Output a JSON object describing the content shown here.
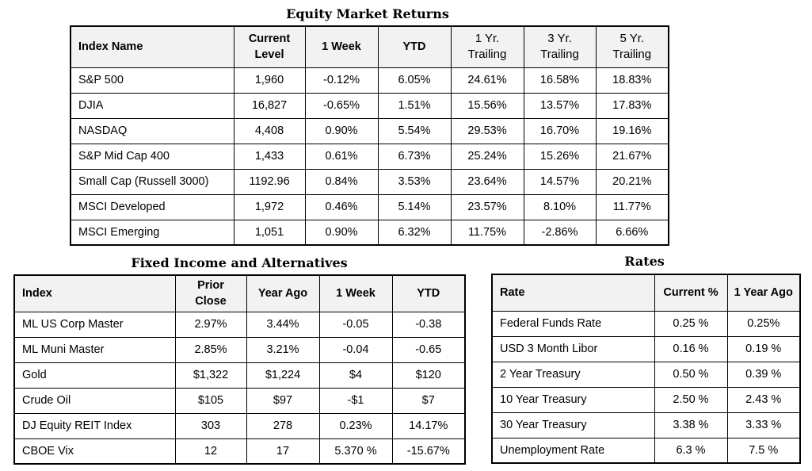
{
  "equity": {
    "title": "Equity Market Returns",
    "headers": [
      "Index Name",
      "Current Level",
      "1 Week",
      "YTD",
      "1 Yr. Trailing",
      "3 Yr. Trailing",
      "5 Yr. Trailing"
    ],
    "rows": [
      [
        "S&P 500",
        "1,960",
        "-0.12%",
        "6.05%",
        "24.61%",
        "16.58%",
        "18.83%"
      ],
      [
        "DJIA",
        "16,827",
        "-0.65%",
        "1.51%",
        "15.56%",
        "13.57%",
        "17.83%"
      ],
      [
        "NASDAQ",
        "4,408",
        "0.90%",
        "5.54%",
        "29.53%",
        "16.70%",
        "19.16%"
      ],
      [
        "S&P Mid Cap 400",
        "1,433",
        "0.61%",
        "6.73%",
        "25.24%",
        "15.26%",
        "21.67%"
      ],
      [
        "Small Cap (Russell 3000)",
        "1192.96",
        "0.84%",
        "3.53%",
        "23.64%",
        "14.57%",
        "20.21%"
      ],
      [
        "MSCI Developed",
        "1,972",
        "0.46%",
        "5.14%",
        "23.57%",
        "8.10%",
        "11.77%"
      ],
      [
        "MSCI Emerging",
        "1,051",
        "0.90%",
        "6.32%",
        "11.75%",
        "-2.86%",
        "6.66%"
      ]
    ]
  },
  "fixed": {
    "title": "Fixed Income and Alternatives",
    "headers": [
      "Index",
      "Prior Close",
      "Year Ago",
      "1 Week",
      "YTD"
    ],
    "rows": [
      [
        "ML US Corp Master",
        "2.97%",
        "3.44%",
        "-0.05",
        "-0.38"
      ],
      [
        "ML Muni Master",
        "2.85%",
        "3.21%",
        "-0.04",
        "-0.65"
      ],
      [
        "Gold",
        "$1,322",
        "$1,224",
        "$4",
        "$120"
      ],
      [
        "Crude Oil",
        "$105",
        "$97",
        "-$1",
        "$7"
      ],
      [
        "DJ Equity REIT Index",
        "303",
        "278",
        "0.23%",
        "14.17%"
      ],
      [
        "CBOE Vix",
        "12",
        "17",
        "5.370 %",
        "-15.67%"
      ]
    ]
  },
  "rates": {
    "title": "Rates",
    "headers": [
      "Rate",
      "Current %",
      "1 Year Ago"
    ],
    "rows": [
      [
        "Federal Funds Rate",
        "0.25 %",
        "0.25%"
      ],
      [
        "USD 3 Month Libor",
        "0.16 %",
        "0.19 %"
      ],
      [
        "2 Year Treasury",
        "0.50 %",
        "0.39 %"
      ],
      [
        "10 Year Treasury",
        "2.50 %",
        "2.43 %"
      ],
      [
        "30 Year Treasury",
        "3.38 %",
        "3.33 %"
      ],
      [
        "Unemployment Rate",
        "6.3 %",
        "7.5 %"
      ]
    ]
  }
}
